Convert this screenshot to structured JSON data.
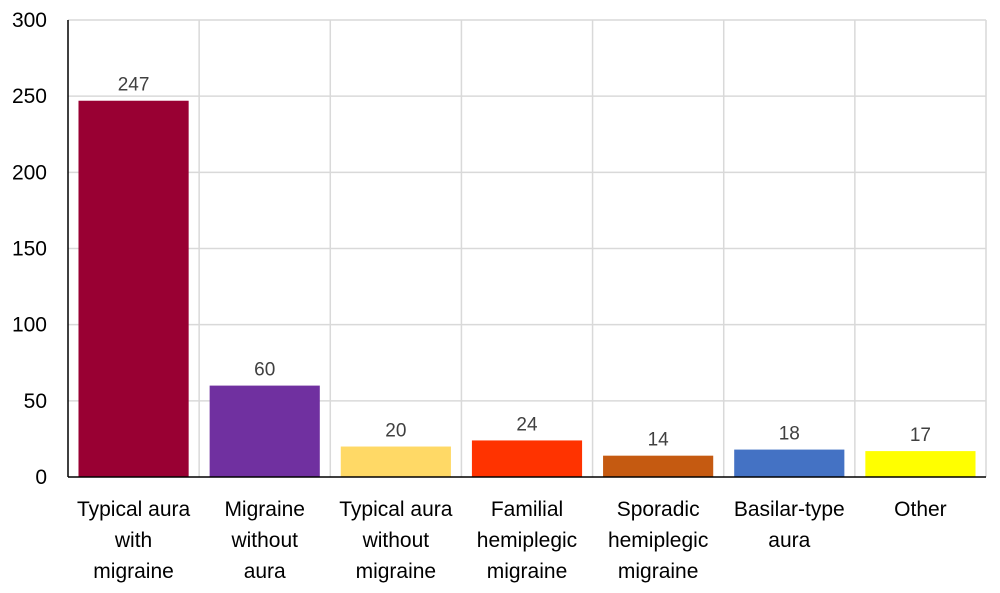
{
  "chart_data": {
    "type": "bar",
    "categories": [
      "Typical aura with migraine",
      "Migraine without aura",
      "Typical aura without migraine",
      "Familial hemiplegic migraine",
      "Sporadic hemiplegic migraine",
      "Basilar-type aura",
      "Other"
    ],
    "category_lines": [
      [
        "Typical aura",
        "with",
        "migraine"
      ],
      [
        "Migraine",
        "without",
        "aura"
      ],
      [
        "Typical aura",
        "without",
        "migraine"
      ],
      [
        "Familial",
        "hemiplegic",
        "migraine"
      ],
      [
        "Sporadic",
        "hemiplegic",
        "migraine"
      ],
      [
        "Basilar-type",
        "aura"
      ],
      [
        "Other"
      ]
    ],
    "values": [
      247,
      60,
      20,
      24,
      14,
      18,
      17
    ],
    "colors": [
      "#990033",
      "#7030A0",
      "#FFD966",
      "#FF3300",
      "#C55A11",
      "#4472C4",
      "#FFFF00"
    ],
    "ylim": [
      0,
      300
    ],
    "yticks": [
      0,
      50,
      100,
      150,
      200,
      250,
      300
    ],
    "title": "",
    "xlabel": "",
    "ylabel": "",
    "grid": true,
    "data_labels": true
  }
}
